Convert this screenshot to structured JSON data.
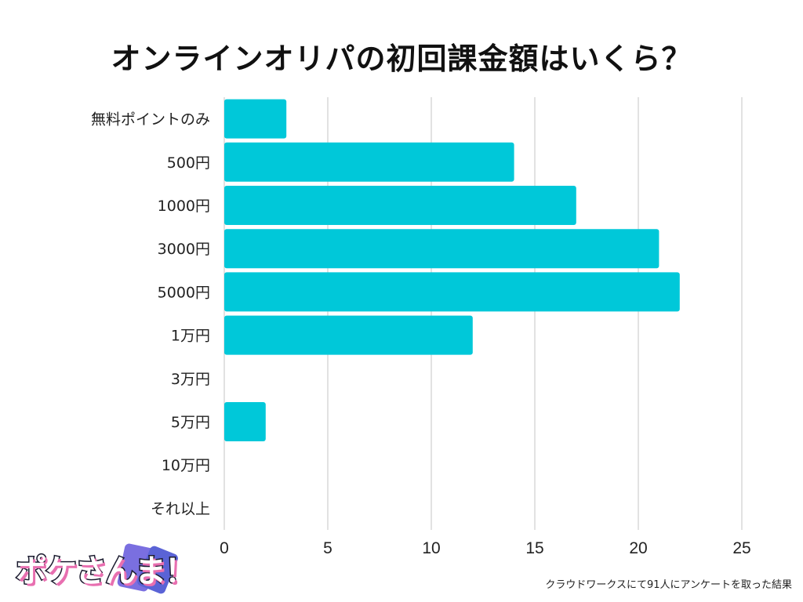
{
  "chart_data": {
    "type": "bar",
    "orientation": "horizontal",
    "title": "オンラインオリパの初回課金額はいくら？",
    "categories": [
      "無料ポイントのみ",
      "500円",
      "1000円",
      "3000円",
      "5000円",
      "1万円",
      "3万円",
      "5万円",
      "10万円",
      "それ以上"
    ],
    "values": [
      3,
      14,
      17,
      21,
      22,
      12,
      0,
      2,
      0,
      0
    ],
    "xlim": [
      0,
      25
    ],
    "xticks": [
      "0",
      "5",
      "10",
      "15",
      "20",
      "25"
    ],
    "grid": true,
    "bar_color": "#00c8d9"
  },
  "footnote": "クラウドワークスにて91人にアンケートを取った結果",
  "logo": {
    "text": "ポケさんま！"
  }
}
